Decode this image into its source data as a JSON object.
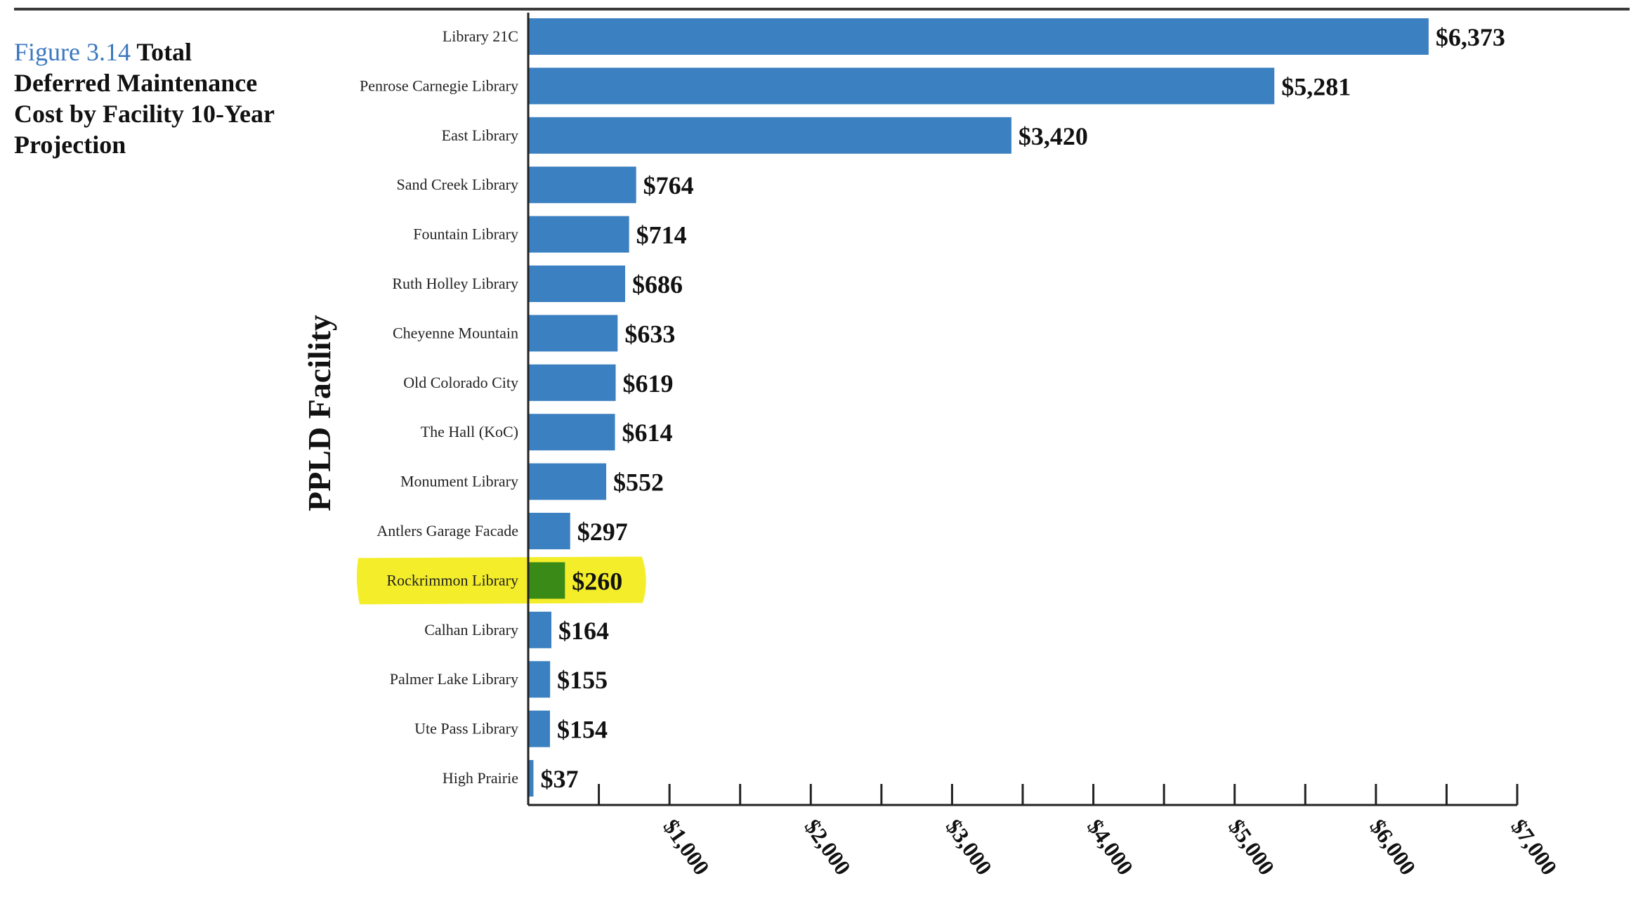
{
  "caption": {
    "figure_label": "Figure 3.14",
    "title": "Total Deferred Maintenance Cost by Facility 10-Year Projection"
  },
  "colors": {
    "bar": "#3b80c0",
    "highlight_bar": "#3a8a18",
    "highlight_marker": "#f4ee2a",
    "axis": "#222222"
  },
  "chart_data": {
    "type": "bar",
    "orientation": "horizontal",
    "ylabel": "PPLD Facility",
    "xlabel": "",
    "xlim": [
      0,
      7000
    ],
    "grid": false,
    "highlighted_category": "Rockrimmon Library",
    "categories": [
      "Library 21C",
      "Penrose Carnegie Library",
      "East Library",
      "Sand Creek Library",
      "Fountain Library",
      "Ruth Holley Library",
      "Cheyenne Mountain",
      "Old Colorado City",
      "The Hall (KoC)",
      "Monument Library",
      "Antlers Garage Facade",
      "Rockrimmon Library",
      "Calhan Library",
      "Palmer Lake Library",
      "Ute Pass Library",
      "High Prairie"
    ],
    "values": [
      6373,
      5281,
      3420,
      764,
      714,
      686,
      633,
      619,
      614,
      552,
      297,
      260,
      164,
      155,
      154,
      37
    ],
    "value_labels": [
      "$6,373",
      "$5,281",
      "$3,420",
      "$764",
      "$714",
      "$686",
      "$633",
      "$619",
      "$614",
      "$552",
      "$297",
      "$260",
      "$164",
      "$155",
      "$154",
      "$37"
    ],
    "x_ticks": [
      1000,
      2000,
      3000,
      4000,
      5000,
      6000,
      7000
    ],
    "x_tick_labels": [
      "$1,000",
      "$2,000",
      "$3,000",
      "$4,000",
      "$5,000",
      "$6,000",
      "$7,000"
    ]
  }
}
